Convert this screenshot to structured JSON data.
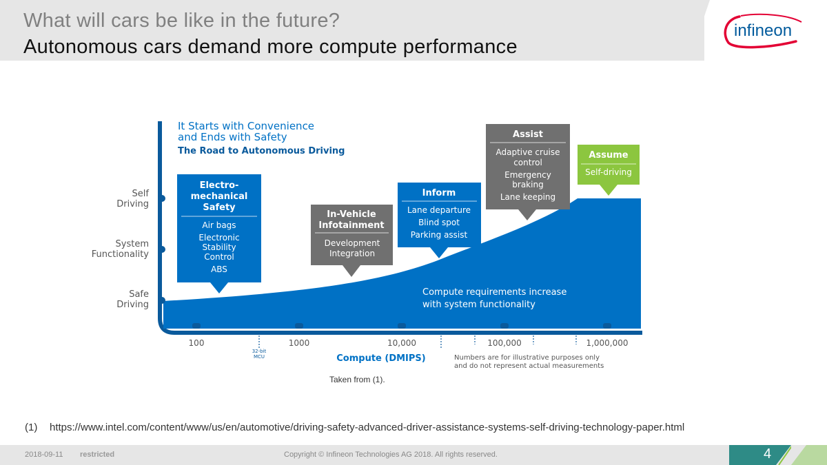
{
  "slide": {
    "title_line1": "What will cars be like in the future?",
    "title_line2": "Autonomous cars demand more compute performance",
    "logo_text": "infineon",
    "caption": "Taken from (1).",
    "footnote_number": "(1)",
    "footnote_text": "https://www.intel.com/content/www/us/en/automotive/driving-safety-advanced-driver-assistance-systems-self-driving-technology-paper.html",
    "footer_date": "2018-09-11",
    "footer_classification": "restricted",
    "footer_copyright": "Copyright © Infineon Technologies AG 2018. All rights reserved.",
    "page_number": "4"
  },
  "diagram": {
    "heading_line1": "It Starts with Convenience",
    "heading_line2": "and Ends with Safety",
    "heading_line3": "The Road to Autonomous Driving",
    "y_labels": {
      "self_1": "Self",
      "self_2": "Driving",
      "system_1": "System",
      "system_2": "Functionality",
      "safe_1": "Safe",
      "safe_2": "Driving"
    },
    "x_ticks": [
      "100",
      "1000",
      "10,000",
      "100,000",
      "1,000,000"
    ],
    "mcu_1": "32-bit",
    "mcu_2": "MCU",
    "x_axis_title": "Compute (DMIPS)",
    "disclaimer_1": "Numbers are for illustrative purposes only",
    "disclaimer_2": "and do not represent actual measurements",
    "curve_text_1": "Compute requirements increase",
    "curve_text_2": "with system functionality",
    "boxes": {
      "electro": {
        "title_1": "Electro-",
        "title_2": "mechanical",
        "title_3": "Safety",
        "items": [
          "Air bags",
          "Electronic",
          "Stability",
          "Control",
          "ABS"
        ]
      },
      "infotainment": {
        "title_1": "In-Vehicle",
        "title_2": "Infotainment",
        "items": [
          "Development",
          "Integration"
        ]
      },
      "inform": {
        "title_1": "Inform",
        "items": [
          "Lane departure",
          "Blind spot",
          "Parking assist"
        ]
      },
      "assist": {
        "title_1": "Assist",
        "items": [
          "Adaptive cruise",
          "control",
          "Emergency",
          "braking",
          "Lane keeping"
        ]
      },
      "assume": {
        "title_1": "Assume",
        "items": [
          "Self-driving"
        ]
      }
    },
    "colors": {
      "blue": "#0071c5",
      "dark_blue": "#0a5a9c",
      "gray_box": "#707070",
      "green_box": "#8cc63f",
      "logo_red": "#e30034",
      "logo_blue": "#005a9c",
      "footer_teal": "#2e8b86"
    }
  }
}
